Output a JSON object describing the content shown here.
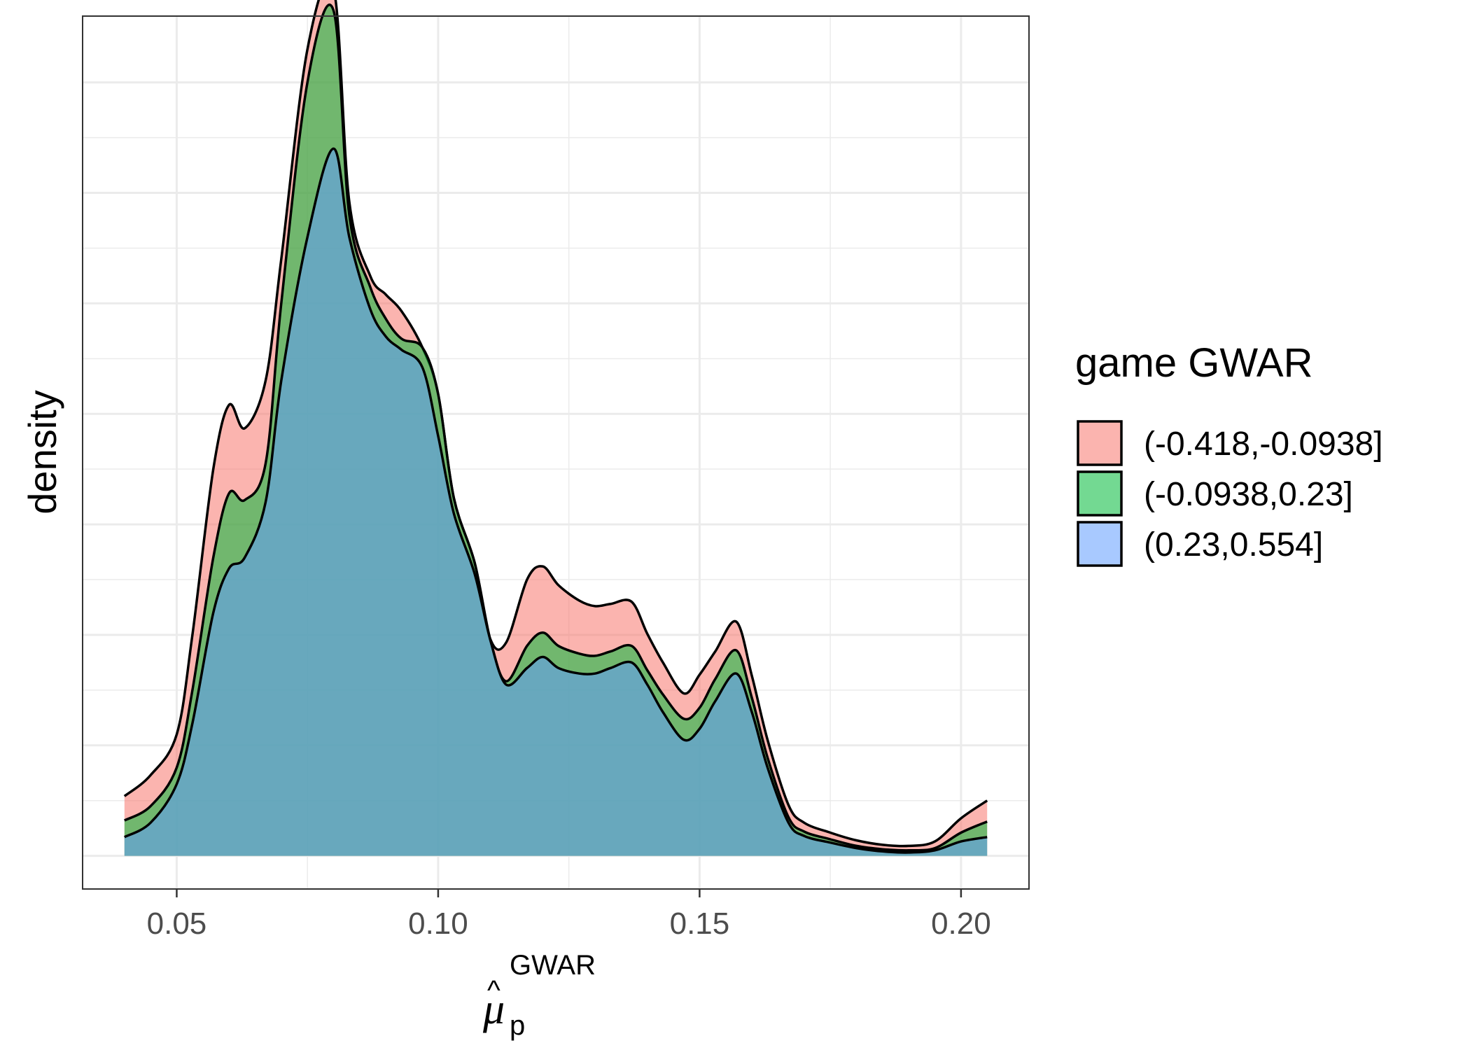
{
  "chart_data": {
    "type": "area",
    "stacked": true,
    "title": "",
    "xlabel": {
      "symbol": "μ",
      "hat": "^",
      "subscript": "p",
      "superscript": "GWAR"
    },
    "ylabel": "density",
    "xlim": [
      0.032,
      0.213
    ],
    "ylim": [
      -0.3,
      7.6
    ],
    "x_ticks": [
      {
        "value": 0.05,
        "label": "0.05"
      },
      {
        "value": 0.1,
        "label": "0.10"
      },
      {
        "value": 0.15,
        "label": "0.15"
      },
      {
        "value": 0.2,
        "label": "0.20"
      }
    ],
    "y_ticks_shown": false,
    "grid": true,
    "legend": {
      "title": "game GWAR",
      "position": "right",
      "items": [
        {
          "label": "(-0.418,-0.0938]",
          "color": "#F8766D"
        },
        {
          "label": "(-0.0938,0.23]",
          "color": "#00BA38"
        },
        {
          "label": "(0.23,0.554]",
          "color": "#619CFF"
        }
      ]
    },
    "x": [
      0.04,
      0.045,
      0.05,
      0.053,
      0.057,
      0.06,
      0.063,
      0.067,
      0.07,
      0.075,
      0.08,
      0.083,
      0.087,
      0.09,
      0.093,
      0.097,
      0.1,
      0.103,
      0.107,
      0.11,
      0.113,
      0.117,
      0.12,
      0.123,
      0.127,
      0.13,
      0.133,
      0.137,
      0.14,
      0.143,
      0.147,
      0.15,
      0.153,
      0.157,
      0.16,
      0.163,
      0.167,
      0.17,
      0.175,
      0.18,
      0.185,
      0.19,
      0.195,
      0.2,
      0.205
    ],
    "series": [
      {
        "name": "(0.23,0.554]",
        "color": "#619CFF",
        "values": [
          0.17,
          0.3,
          0.65,
          1.2,
          2.2,
          2.6,
          2.7,
          3.2,
          4.3,
          5.6,
          6.4,
          5.6,
          4.95,
          4.7,
          4.58,
          4.42,
          3.8,
          3.1,
          2.55,
          1.95,
          1.55,
          1.7,
          1.8,
          1.7,
          1.65,
          1.65,
          1.7,
          1.75,
          1.55,
          1.3,
          1.05,
          1.15,
          1.4,
          1.65,
          1.3,
          0.8,
          0.3,
          0.18,
          0.12,
          0.07,
          0.04,
          0.03,
          0.05,
          0.13,
          0.17
        ]
      },
      {
        "name": "(-0.0938,0.23]",
        "color": "#00BA38",
        "values": [
          0.15,
          0.15,
          0.15,
          0.3,
          0.5,
          0.68,
          0.52,
          0.35,
          0.7,
          1.4,
          1.25,
          0.2,
          0.2,
          0.16,
          0.1,
          0.18,
          0.38,
          0.14,
          0.1,
          0.0,
          0.03,
          0.2,
          0.22,
          0.2,
          0.18,
          0.16,
          0.15,
          0.15,
          0.13,
          0.16,
          0.19,
          0.19,
          0.2,
          0.21,
          0.13,
          0.09,
          0.05,
          0.04,
          0.03,
          0.02,
          0.02,
          0.02,
          0.02,
          0.08,
          0.14
        ]
      },
      {
        "name": "(-0.418,-0.0938]",
        "color": "#F8766D",
        "values": [
          0.22,
          0.28,
          0.3,
          0.5,
          0.8,
          0.8,
          0.65,
          0.75,
          0.4,
          0.3,
          0.2,
          0.12,
          0.1,
          0.22,
          0.25,
          0.0,
          0.0,
          0.0,
          0.0,
          0.01,
          0.35,
          0.6,
          0.6,
          0.55,
          0.48,
          0.45,
          0.43,
          0.4,
          0.33,
          0.29,
          0.23,
          0.3,
          0.25,
          0.26,
          0.2,
          0.16,
          0.11,
          0.08,
          0.06,
          0.05,
          0.04,
          0.04,
          0.06,
          0.13,
          0.19
        ]
      }
    ]
  }
}
